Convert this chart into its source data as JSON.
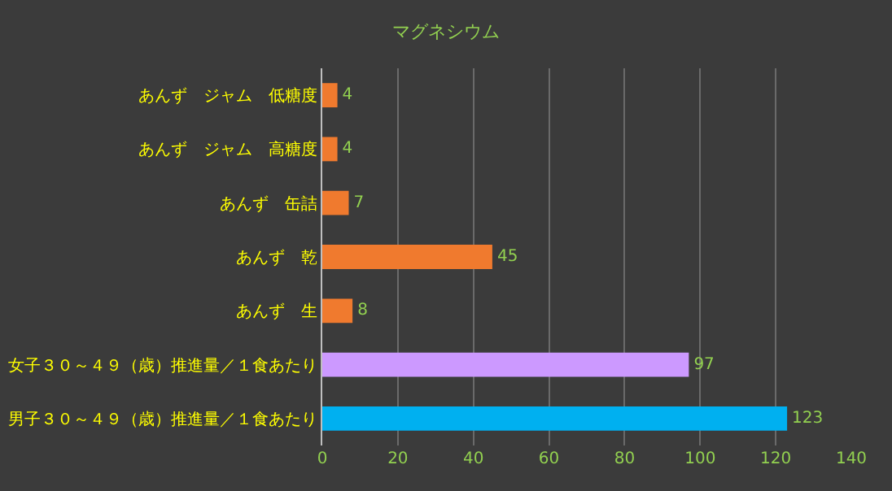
{
  "chart_data": {
    "type": "bar",
    "orientation": "horizontal",
    "title": "マグネシウム",
    "categories": [
      "あんず　ジャム　低糖度",
      "あんず　ジャム　高糖度",
      "あんず　缶詰",
      "あんず　乾",
      "あんず　生",
      "女子３０～４９（歳）推進量／１食あたり",
      "男子３０～４９（歳）推進量／１食あたり"
    ],
    "values": [
      4,
      4,
      7,
      45,
      8,
      97,
      123
    ],
    "colors": [
      "#f07a2e",
      "#f07a2e",
      "#f07a2e",
      "#f07a2e",
      "#f07a2e",
      "#cc99ff",
      "#00b0f0"
    ],
    "xlim": [
      0,
      140
    ],
    "xticks": [
      0,
      20,
      40,
      60,
      80,
      100,
      120,
      140
    ],
    "grid": "x",
    "data_labels": true
  }
}
